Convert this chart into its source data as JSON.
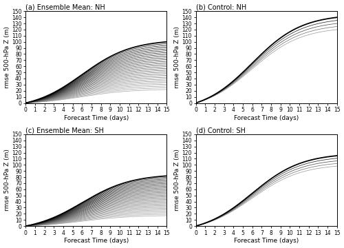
{
  "title_a": "(a) Ensemble Mean: NH",
  "title_b": "(b) Control: NH",
  "title_c": "(c) Ensemble Mean: SH",
  "title_d": "(d) Control: SH",
  "xlabel": "Forecast Time (days)",
  "ylabel": "rmse 500-hPa Z (m)",
  "ylim": [
    0,
    150
  ],
  "xlim": [
    0,
    15
  ],
  "xticks": [
    0,
    1,
    2,
    3,
    4,
    5,
    6,
    7,
    8,
    9,
    10,
    11,
    12,
    13,
    14,
    15
  ],
  "yticks": [
    0,
    10,
    20,
    30,
    40,
    50,
    60,
    70,
    80,
    90,
    100,
    110,
    120,
    130,
    140,
    150
  ],
  "n_ensemble_curves": 28,
  "n_control_curves": 5,
  "nh_ens_upper": 100,
  "nh_ens_lower": 22,
  "sh_ens_upper": 82,
  "sh_ens_lower": 17,
  "nh_ctrl_upper": 140,
  "nh_ctrl_lower": 120,
  "sh_ctrl_upper": 115,
  "sh_ctrl_lower": 98,
  "title_fontsize": 7.0,
  "label_fontsize": 6.5,
  "tick_fontsize": 5.5,
  "lw_thick": 1.3,
  "lw_thin": 0.55
}
